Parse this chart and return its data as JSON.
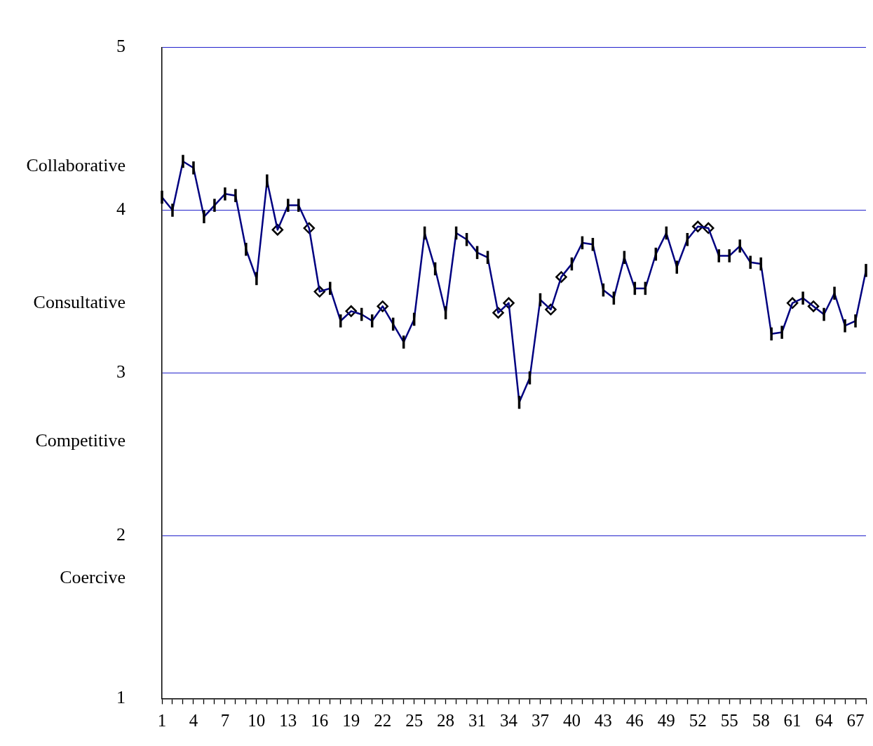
{
  "chart_data": {
    "type": "line",
    "x": [
      1,
      2,
      3,
      4,
      5,
      6,
      7,
      8,
      9,
      10,
      11,
      12,
      13,
      14,
      15,
      16,
      17,
      18,
      19,
      20,
      21,
      22,
      23,
      24,
      25,
      26,
      27,
      28,
      29,
      30,
      31,
      32,
      33,
      34,
      35,
      36,
      37,
      38,
      39,
      40,
      41,
      42,
      43,
      44,
      45,
      46,
      47,
      48,
      49,
      50,
      51,
      52,
      53,
      54,
      55,
      56,
      57,
      58,
      59,
      60,
      61,
      62,
      63,
      64,
      65,
      66,
      67,
      68
    ],
    "series": [
      {
        "color": "#000080",
        "marker": "none",
        "values": [
          4.08,
          4.0,
          4.3,
          4.26,
          3.96,
          4.03,
          4.1,
          4.09,
          3.76,
          3.58,
          4.18,
          3.88,
          4.03,
          4.03,
          3.89,
          3.5,
          3.52,
          3.32,
          3.38,
          3.36,
          3.32,
          3.41,
          3.3,
          3.19,
          3.33,
          3.86,
          3.64,
          3.37,
          3.86,
          3.82,
          3.74,
          3.71,
          3.37,
          3.43,
          2.82,
          2.97,
          3.45,
          3.39,
          3.59,
          3.67,
          3.8,
          3.79,
          3.51,
          3.46,
          3.71,
          3.52,
          3.52,
          3.73,
          3.86,
          3.65,
          3.82,
          3.9,
          3.89,
          3.72,
          3.72,
          3.78,
          3.68,
          3.67,
          3.24,
          3.25,
          3.43,
          3.46,
          3.41,
          3.36,
          3.49,
          3.29,
          3.32,
          3.63
        ],
        "errors": [
          0.04,
          0.04,
          0.04,
          0.04,
          0.04,
          0.04,
          0.04,
          0.04,
          0.04,
          0.04,
          0.04,
          null,
          0.04,
          0.04,
          null,
          null,
          0.04,
          0.04,
          null,
          0.04,
          0.04,
          null,
          0.04,
          0.04,
          0.04,
          0.04,
          0.04,
          0.04,
          0.04,
          0.04,
          0.04,
          0.04,
          null,
          null,
          0.04,
          0.04,
          0.04,
          null,
          null,
          0.04,
          0.04,
          0.04,
          0.04,
          0.04,
          0.04,
          0.04,
          0.04,
          0.04,
          0.04,
          0.04,
          0.04,
          null,
          null,
          0.04,
          0.04,
          0.04,
          0.04,
          0.04,
          0.04,
          0.04,
          null,
          0.04,
          null,
          0.04,
          0.04,
          0.04,
          0.04,
          0.04
        ]
      },
      {
        "type": "scatter",
        "color": "#000000",
        "marker": "diamond",
        "x": [
          12,
          15,
          16,
          19,
          22,
          33,
          34,
          38,
          39,
          52,
          53,
          61,
          63
        ],
        "values": [
          3.88,
          3.89,
          3.5,
          3.38,
          3.41,
          3.37,
          3.43,
          3.39,
          3.59,
          3.9,
          3.89,
          3.43,
          3.41
        ]
      }
    ],
    "xlim": [
      1,
      68
    ],
    "xticks": [
      1,
      {
        "value": 2,
        "label": null
      },
      {
        "value": 3,
        "label": null
      },
      4,
      {
        "value": 5,
        "label": null
      },
      {
        "value": 6,
        "label": null
      },
      7,
      {
        "value": 8,
        "label": null
      },
      {
        "value": 9,
        "label": null
      },
      10,
      {
        "value": 11,
        "label": null
      },
      {
        "value": 12,
        "label": null
      },
      13,
      {
        "value": 14,
        "label": null
      },
      {
        "value": 15,
        "label": null
      },
      16,
      {
        "value": 17,
        "label": null
      },
      {
        "value": 18,
        "label": null
      },
      19,
      {
        "value": 20,
        "label": null
      },
      {
        "value": 21,
        "label": null
      },
      22,
      {
        "value": 23,
        "label": null
      },
      {
        "value": 24,
        "label": null
      },
      25,
      {
        "value": 26,
        "label": null
      },
      {
        "value": 27,
        "label": null
      },
      28,
      {
        "value": 29,
        "label": null
      },
      {
        "value": 30,
        "label": null
      },
      31,
      {
        "value": 32,
        "label": null
      },
      {
        "value": 33,
        "label": null
      },
      34,
      {
        "value": 35,
        "label": null
      },
      {
        "value": 36,
        "label": null
      },
      37,
      {
        "value": 38,
        "label": null
      },
      {
        "value": 39,
        "label": null
      },
      40,
      {
        "value": 41,
        "label": null
      },
      {
        "value": 42,
        "label": null
      },
      43,
      {
        "value": 44,
        "label": null
      },
      {
        "value": 45,
        "label": null
      },
      46,
      {
        "value": 47,
        "label": null
      },
      {
        "value": 48,
        "label": null
      },
      49,
      {
        "value": 50,
        "label": null
      },
      {
        "value": 51,
        "label": null
      },
      52,
      {
        "value": 53,
        "label": null
      },
      {
        "value": 54,
        "label": null
      },
      55,
      {
        "value": 56,
        "label": null
      },
      {
        "value": 57,
        "label": null
      },
      58,
      {
        "value": 59,
        "label": null
      },
      {
        "value": 60,
        "label": null
      },
      61,
      {
        "value": 62,
        "label": null
      },
      {
        "value": 63,
        "label": null
      },
      64,
      {
        "value": 65,
        "label": null
      },
      {
        "value": 66,
        "label": null
      },
      67,
      {
        "value": 68,
        "label": null
      }
    ],
    "ylim": [
      1,
      5
    ],
    "yticks": [
      1,
      {
        "value": 1.74,
        "label": "Coercive"
      },
      2,
      {
        "value": 2.58,
        "label": "Competitive"
      },
      3,
      {
        "value": 3.43,
        "label": "Consultative"
      },
      4,
      {
        "value": 4.27,
        "label": "Collaborative"
      },
      5
    ],
    "grid": "y",
    "legend": false
  }
}
